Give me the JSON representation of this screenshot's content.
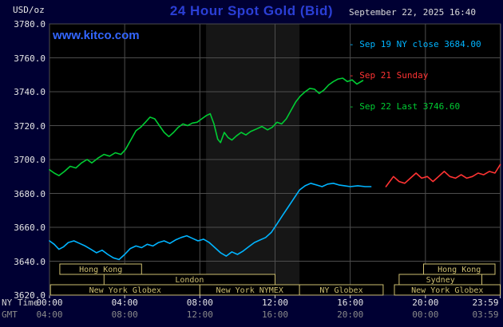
{
  "header": {
    "units": "USD/oz",
    "title": "24 Hour Spot Gold (Bid)",
    "datetime": "September 22, 2025 16:40",
    "watermark": "www.kitco.com"
  },
  "legend": {
    "items": [
      {
        "text": "- Sep 19 NY close 3684.00",
        "color": "#00b4ff"
      },
      {
        "text": "- Sep 21 Sunday",
        "color": "#ff3333"
      },
      {
        "text": "- Sep 22 Last 3746.60",
        "color": "#00cc33"
      }
    ]
  },
  "axes": {
    "ny_caption": "NY Time",
    "gmt_caption": "GMT"
  },
  "colors": {
    "page_bg": "#000033",
    "plot_bg": "#000000",
    "band": "#161616",
    "grid": "#4d4d4d",
    "session": "#cdbe70",
    "title": "#2b3fd6",
    "watermark": "#3366ff",
    "tick": "#d0d0d0"
  },
  "chart_data": {
    "type": "line",
    "title": "24 Hour Spot Gold (Bid)",
    "ylabel": "USD/oz",
    "xlabel": "NY Time / GMT",
    "ylim": [
      3620,
      3780
    ],
    "y_ticks": [
      3620,
      3640,
      3660,
      3680,
      3700,
      3720,
      3740,
      3760,
      3780
    ],
    "xlim_hours": [
      0,
      24
    ],
    "x_ticks": [
      {
        "h": 0,
        "ny": "00:00",
        "gmt": "04:00"
      },
      {
        "h": 4,
        "ny": "04:00",
        "gmt": "08:00"
      },
      {
        "h": 8,
        "ny": "08:00",
        "gmt": "12:00"
      },
      {
        "h": 12,
        "ny": "12:00",
        "gmt": "16:00"
      },
      {
        "h": 16,
        "ny": "16:00",
        "gmt": "20:00"
      },
      {
        "h": 20,
        "ny": "20:00",
        "gmt": "00:00"
      },
      {
        "h": 23.983,
        "ny": "23:59",
        "gmt": "03:59"
      }
    ],
    "grid": true,
    "legend_position": "top-right",
    "nymex_band_hours": [
      8.33,
      13.3
    ],
    "series": [
      {
        "id": "sep19-ny-close",
        "name": "Sep 19 NY close",
        "close_value": 3684.0,
        "color": "#00b4ff",
        "points": [
          [
            0,
            3652
          ],
          [
            0.25,
            3650
          ],
          [
            0.5,
            3647
          ],
          [
            0.75,
            3648.5
          ],
          [
            1,
            3651
          ],
          [
            1.3,
            3652
          ],
          [
            1.6,
            3650.5
          ],
          [
            1.9,
            3649
          ],
          [
            2.2,
            3647
          ],
          [
            2.5,
            3645
          ],
          [
            2.8,
            3646.5
          ],
          [
            3.1,
            3644
          ],
          [
            3.4,
            3642
          ],
          [
            3.7,
            3641
          ],
          [
            4,
            3644
          ],
          [
            4.3,
            3647.5
          ],
          [
            4.6,
            3649
          ],
          [
            4.9,
            3648
          ],
          [
            5.2,
            3650
          ],
          [
            5.5,
            3649
          ],
          [
            5.8,
            3651
          ],
          [
            6.1,
            3652
          ],
          [
            6.4,
            3650.5
          ],
          [
            6.7,
            3652.5
          ],
          [
            7,
            3654
          ],
          [
            7.3,
            3655
          ],
          [
            7.6,
            3653.5
          ],
          [
            7.9,
            3652
          ],
          [
            8.2,
            3653
          ],
          [
            8.5,
            3651
          ],
          [
            8.8,
            3648
          ],
          [
            9.1,
            3645
          ],
          [
            9.4,
            3643
          ],
          [
            9.7,
            3645.5
          ],
          [
            10,
            3644
          ],
          [
            10.3,
            3646
          ],
          [
            10.6,
            3648.5
          ],
          [
            10.9,
            3651
          ],
          [
            11.2,
            3652.5
          ],
          [
            11.5,
            3654
          ],
          [
            11.8,
            3657
          ],
          [
            12.1,
            3662
          ],
          [
            12.4,
            3667
          ],
          [
            12.7,
            3672
          ],
          [
            13,
            3677
          ],
          [
            13.3,
            3682
          ],
          [
            13.6,
            3684.5
          ],
          [
            13.9,
            3686
          ],
          [
            14.2,
            3685
          ],
          [
            14.5,
            3684
          ],
          [
            14.8,
            3685.5
          ],
          [
            15.1,
            3686
          ],
          [
            15.4,
            3685
          ],
          [
            15.7,
            3684.5
          ],
          [
            16,
            3684
          ],
          [
            16.4,
            3684.5
          ],
          [
            16.8,
            3684
          ],
          [
            17.1,
            3684
          ]
        ]
      },
      {
        "id": "sep21-sunday",
        "name": "Sep 21 Sunday",
        "color": "#ff3333",
        "points": [
          [
            17.9,
            3684
          ],
          [
            18.1,
            3687
          ],
          [
            18.3,
            3690
          ],
          [
            18.6,
            3687
          ],
          [
            18.9,
            3686
          ],
          [
            19.2,
            3689
          ],
          [
            19.5,
            3692
          ],
          [
            19.8,
            3689
          ],
          [
            20.1,
            3690
          ],
          [
            20.4,
            3687
          ],
          [
            20.7,
            3690
          ],
          [
            21,
            3693
          ],
          [
            21.3,
            3690
          ],
          [
            21.6,
            3689
          ],
          [
            21.9,
            3691
          ],
          [
            22.2,
            3689
          ],
          [
            22.5,
            3690
          ],
          [
            22.8,
            3692
          ],
          [
            23.1,
            3691
          ],
          [
            23.4,
            3693
          ],
          [
            23.7,
            3692
          ],
          [
            23.98,
            3697
          ]
        ]
      },
      {
        "id": "sep22-current",
        "name": "Sep 22",
        "last_value": 3746.6,
        "color": "#00cc33",
        "points": [
          [
            0,
            3694
          ],
          [
            0.25,
            3692
          ],
          [
            0.5,
            3690.5
          ],
          [
            0.8,
            3693
          ],
          [
            1.1,
            3696
          ],
          [
            1.4,
            3695
          ],
          [
            1.7,
            3698
          ],
          [
            2,
            3700
          ],
          [
            2.25,
            3698
          ],
          [
            2.6,
            3701
          ],
          [
            2.9,
            3703
          ],
          [
            3.2,
            3702
          ],
          [
            3.5,
            3704
          ],
          [
            3.8,
            3703
          ],
          [
            4.05,
            3706
          ],
          [
            4.3,
            3711
          ],
          [
            4.6,
            3717
          ],
          [
            4.85,
            3719
          ],
          [
            5.1,
            3722
          ],
          [
            5.35,
            3725
          ],
          [
            5.6,
            3724
          ],
          [
            5.85,
            3720
          ],
          [
            6.1,
            3716
          ],
          [
            6.35,
            3713.5
          ],
          [
            6.6,
            3716
          ],
          [
            6.85,
            3719
          ],
          [
            7.1,
            3721
          ],
          [
            7.35,
            3720
          ],
          [
            7.6,
            3721.5
          ],
          [
            7.85,
            3722
          ],
          [
            8.1,
            3724
          ],
          [
            8.35,
            3726
          ],
          [
            8.55,
            3727
          ],
          [
            8.75,
            3721
          ],
          [
            8.95,
            3712
          ],
          [
            9.1,
            3710
          ],
          [
            9.3,
            3716
          ],
          [
            9.5,
            3713
          ],
          [
            9.7,
            3711.5
          ],
          [
            9.95,
            3714
          ],
          [
            10.2,
            3716
          ],
          [
            10.45,
            3714.5
          ],
          [
            10.7,
            3716.5
          ],
          [
            11,
            3718
          ],
          [
            11.3,
            3719.5
          ],
          [
            11.6,
            3717.5
          ],
          [
            11.85,
            3719
          ],
          [
            12.1,
            3722
          ],
          [
            12.35,
            3721
          ],
          [
            12.6,
            3724
          ],
          [
            12.85,
            3729
          ],
          [
            13.1,
            3734
          ],
          [
            13.35,
            3737.5
          ],
          [
            13.6,
            3740
          ],
          [
            13.85,
            3742
          ],
          [
            14.1,
            3741.5
          ],
          [
            14.35,
            3739
          ],
          [
            14.6,
            3741
          ],
          [
            14.85,
            3744
          ],
          [
            15.1,
            3746
          ],
          [
            15.35,
            3747.5
          ],
          [
            15.6,
            3748
          ],
          [
            15.85,
            3746
          ],
          [
            16.1,
            3747
          ],
          [
            16.35,
            3744.5
          ],
          [
            16.67,
            3746.6
          ]
        ]
      }
    ],
    "sessions": [
      {
        "label": "Hong Kong",
        "row": 0,
        "start": 0.55,
        "end": 4.9
      },
      {
        "label": "Hong Kong",
        "row": 0,
        "start": 19.9,
        "end": 23.7
      },
      {
        "label": "London",
        "row": 1,
        "start": 2.9,
        "end": 12.0
      },
      {
        "label": "Sydney",
        "row": 1,
        "start": 18.6,
        "end": 23.0
      },
      {
        "label": "New York Globex",
        "row": 2,
        "start": 0.05,
        "end": 8.0
      },
      {
        "label": "New York NYMEX",
        "row": 2,
        "start": 8.0,
        "end": 13.3
      },
      {
        "label": "NY Globex",
        "row": 2,
        "start": 13.3,
        "end": 17.75
      },
      {
        "label": "New York Globex",
        "row": 2,
        "start": 18.35,
        "end": 23.98
      }
    ]
  }
}
